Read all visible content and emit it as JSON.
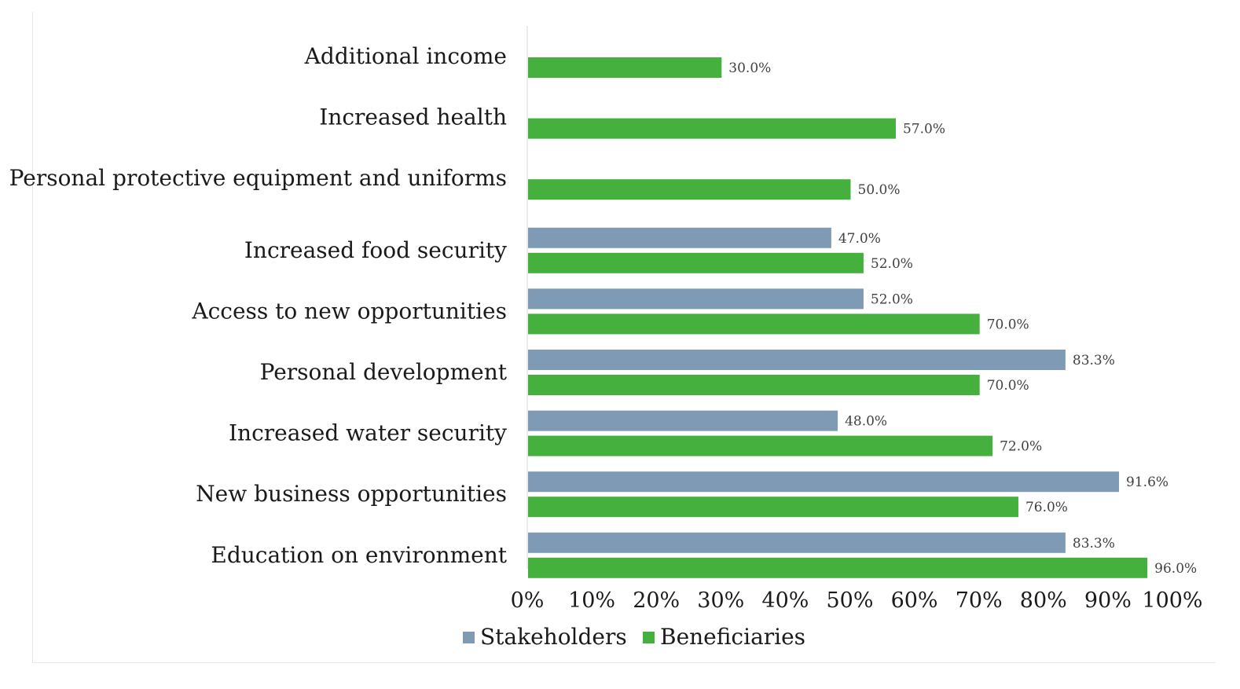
{
  "chart_data": {
    "type": "bar",
    "orientation": "horizontal",
    "categories": [
      "Additional income",
      "Increased health",
      "Personal protective equipment and uniforms",
      "Increased food security",
      "Access to new opportunities",
      "Personal development",
      "Increased water security",
      "New business opportunities",
      "Education on environment"
    ],
    "series": [
      {
        "name": "Stakeholders",
        "color": "#7f9ab5",
        "values": [
          null,
          null,
          null,
          47.0,
          52.0,
          83.3,
          48.0,
          91.6,
          83.3
        ],
        "labels": [
          "",
          "",
          "",
          "47.0%",
          "52.0%",
          "83.3%",
          "48.0%",
          "91.6%",
          "83.3%"
        ]
      },
      {
        "name": "Beneficiaries",
        "color": "#46b03f",
        "values": [
          30.0,
          57.0,
          50.0,
          52.0,
          70.0,
          70.0,
          72.0,
          76.0,
          96.0
        ],
        "labels": [
          "30.0%",
          "57.0%",
          "50.0%",
          "52.0%",
          "70.0%",
          "70.0%",
          "72.0%",
          "76.0%",
          "96.0%"
        ]
      }
    ],
    "xlim": [
      0,
      100
    ],
    "xticks": [
      0,
      10,
      20,
      30,
      40,
      50,
      60,
      70,
      80,
      90,
      100
    ],
    "xtick_labels": [
      "0%",
      "10%",
      "20%",
      "30%",
      "40%",
      "50%",
      "60%",
      "70%",
      "80%",
      "90%",
      "100%"
    ],
    "title": "",
    "xlabel": "",
    "ylabel": "",
    "grid": false,
    "legend_position": "bottom"
  }
}
